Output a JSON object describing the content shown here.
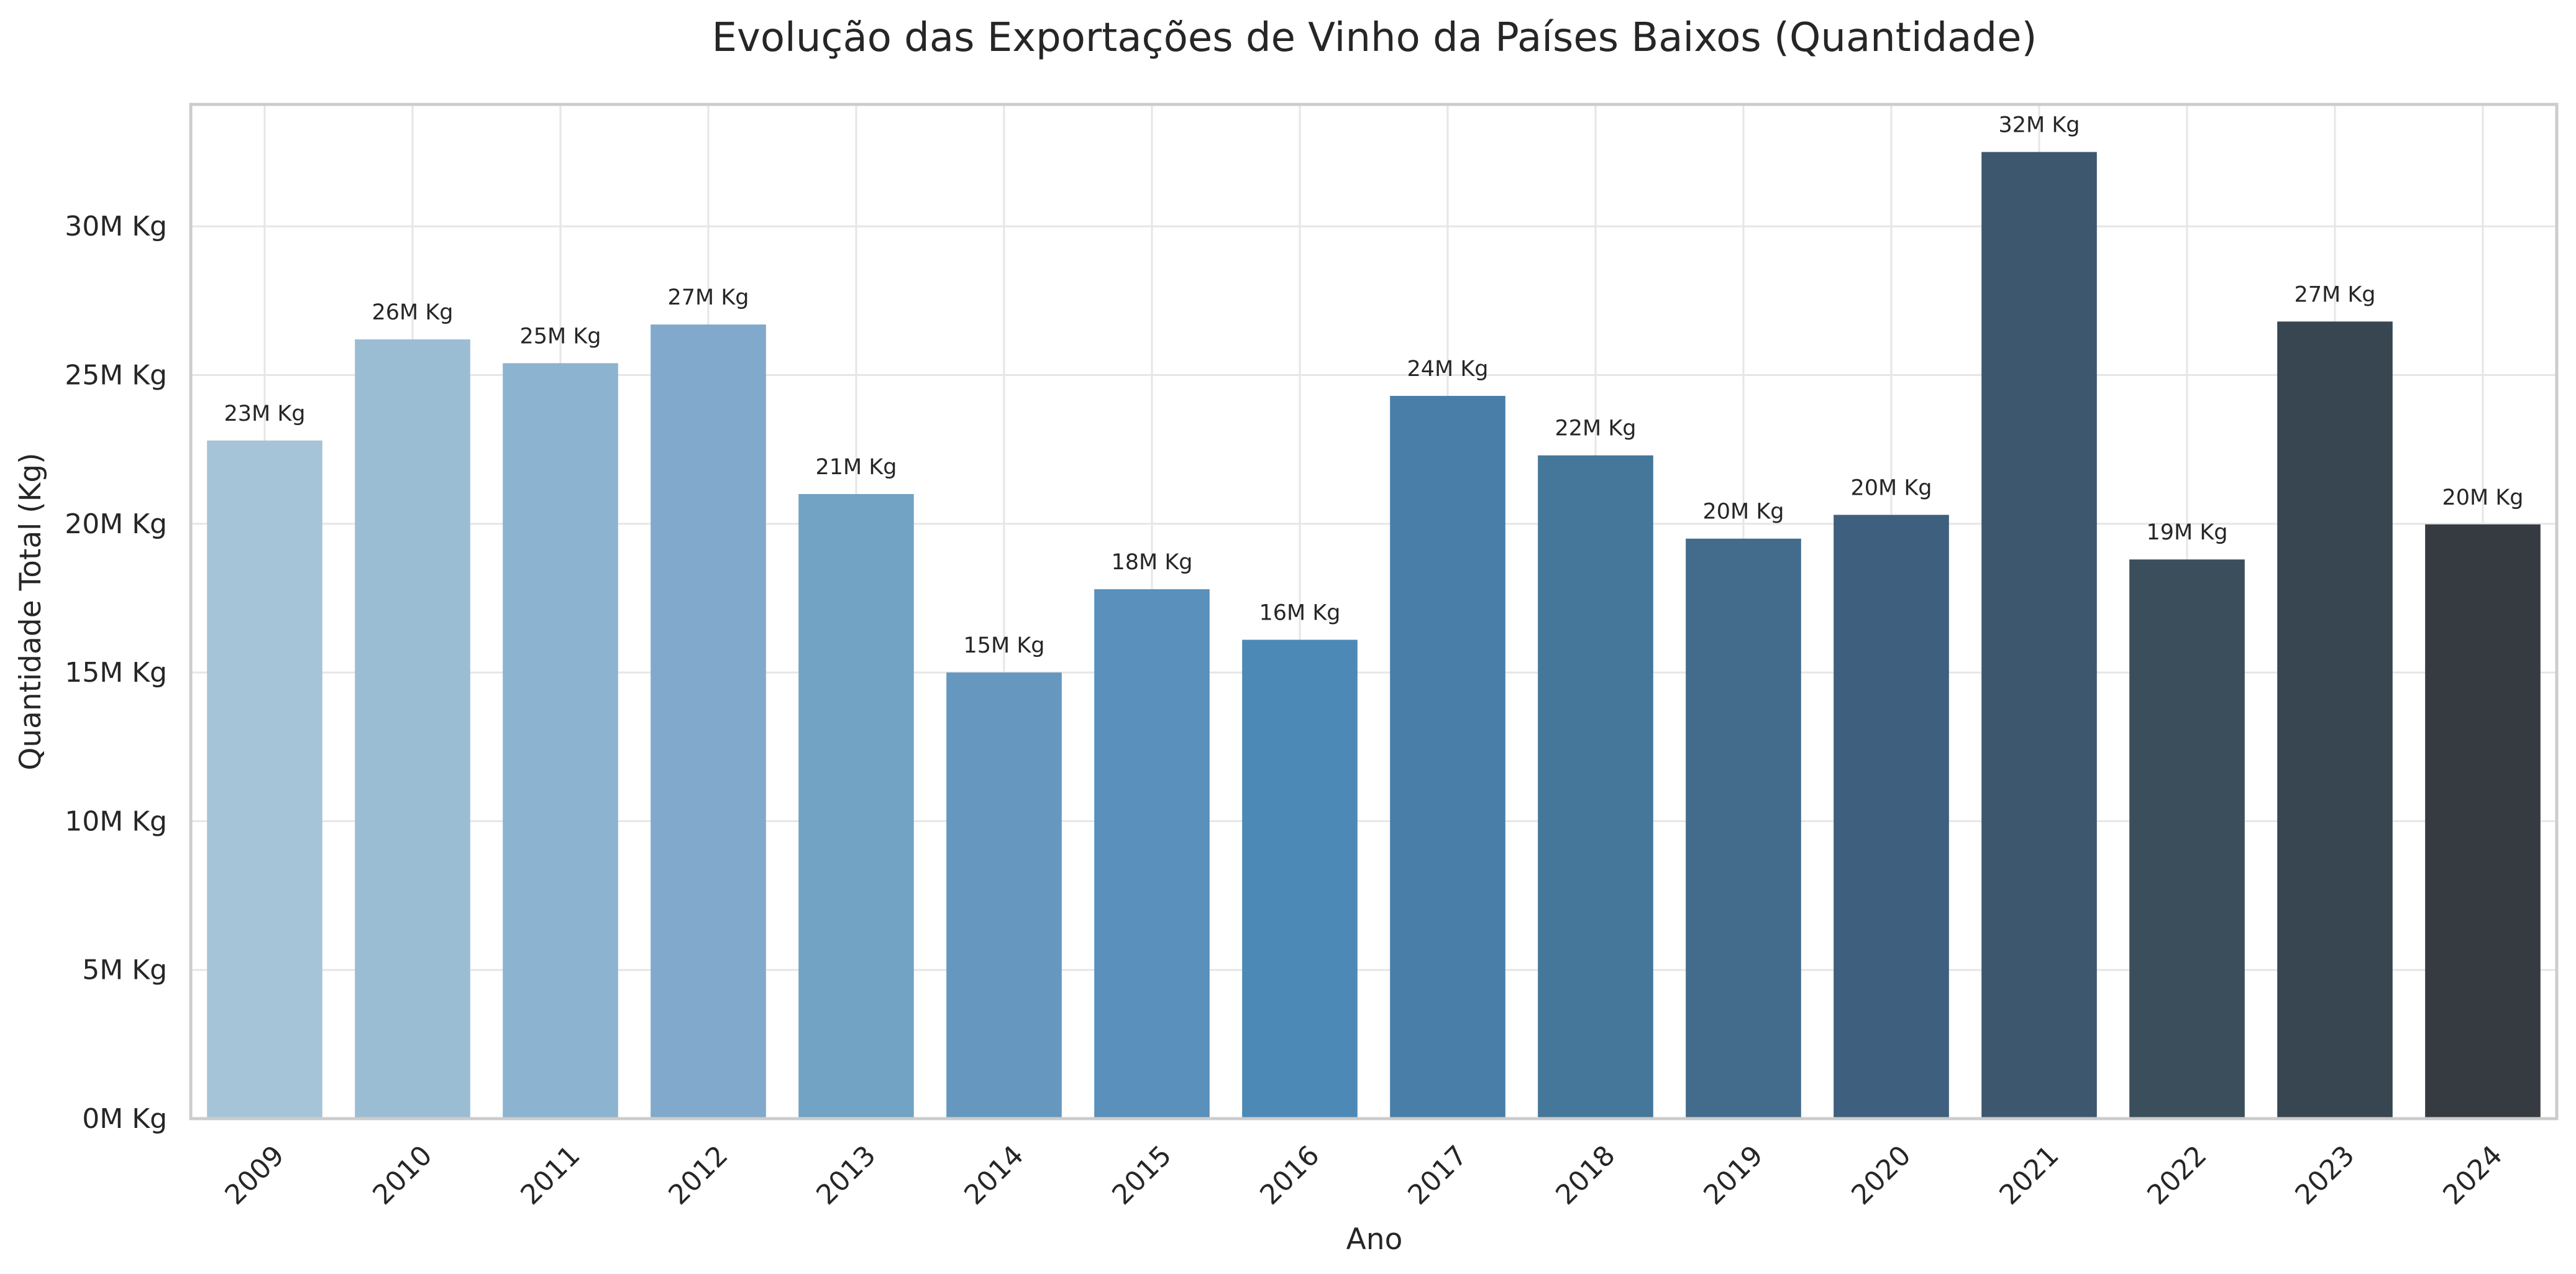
{
  "chart_data": {
    "type": "bar",
    "title": "Evolução das Exportações de Vinho da Países Baixos (Quantidade)",
    "xlabel": "Ano",
    "ylabel": "Quantidade Total (Kg)",
    "categories": [
      "2009",
      "2010",
      "2011",
      "2012",
      "2013",
      "2014",
      "2015",
      "2016",
      "2017",
      "2018",
      "2019",
      "2020",
      "2021",
      "2022",
      "2023",
      "2024"
    ],
    "values": [
      22.8,
      26.2,
      25.4,
      26.7,
      21.0,
      15.0,
      17.8,
      16.1,
      24.3,
      22.3,
      19.5,
      20.3,
      32.5,
      18.8,
      26.8,
      19.98
    ],
    "data_labels": [
      "23M Kg",
      "26M Kg",
      "25M Kg",
      "27M Kg",
      "21M Kg",
      "15M Kg",
      "18M Kg",
      "16M Kg",
      "24M Kg",
      "22M Kg",
      "20M Kg",
      "20M Kg",
      "32M Kg",
      "19M Kg",
      "27M Kg",
      "20M Kg"
    ],
    "value_unit": "millions of Kg",
    "yticks": [
      0,
      5,
      10,
      15,
      20,
      25,
      30
    ],
    "ytick_labels": [
      "0M Kg",
      "5M Kg",
      "10M Kg",
      "15M Kg",
      "20M Kg",
      "25M Kg",
      "30M Kg"
    ],
    "ylim": [
      0,
      34.1
    ],
    "grid": true,
    "legend": "none",
    "bar_colors": [
      "#a6c4d8",
      "#9bbdd4",
      "#8cb4d0",
      "#81a9cb",
      "#72a3c5",
      "#6698bf",
      "#5990bc",
      "#4c89b6",
      "#487ea7",
      "#45779b",
      "#436b8c",
      "#3f5f7e",
      "#3d586e",
      "#3b4e5c",
      "#384651",
      "#363b42"
    ]
  }
}
